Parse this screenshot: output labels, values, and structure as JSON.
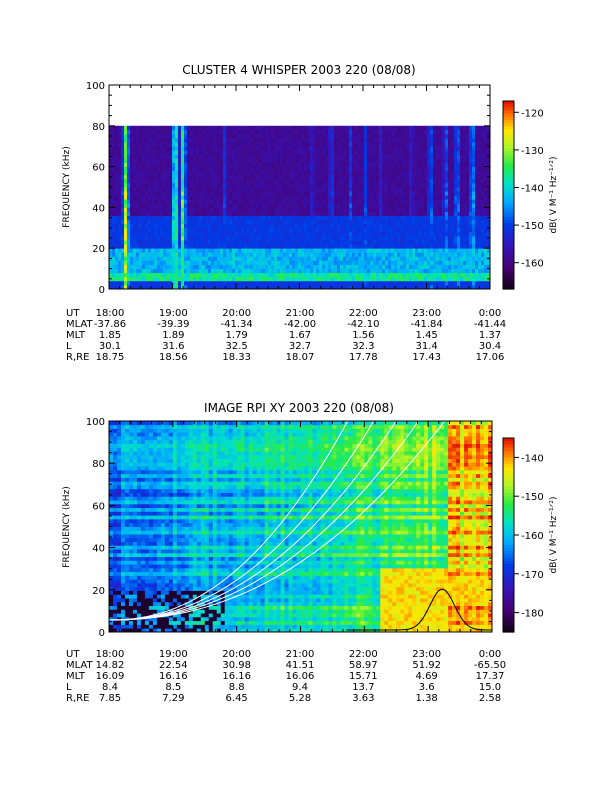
{
  "chart_data": [
    {
      "type": "heatmap",
      "title": "CLUSTER 4 WHISPER 2003 220 (08/08)",
      "ylabel": "FREQUENCY (kHz)",
      "ylim": [
        0,
        100
      ],
      "yticks": [
        "0",
        "20",
        "40",
        "60",
        "80",
        "100"
      ],
      "data_top_khz": 80,
      "colorbar": {
        "label": "dB( V M⁻¹ Hz⁻¹ᐟ²)",
        "range": [
          -167,
          -117
        ],
        "ticks": [
          "-120",
          "-130",
          "-140",
          "-150",
          "-160"
        ]
      },
      "time_ticks": [
        "18:00",
        "19:00",
        "20:00",
        "21:00",
        "22:00",
        "23:00",
        "0:00"
      ],
      "ephemeris": [
        {
          "label": "UT",
          "values": [
            "18:00",
            "19:00",
            "20:00",
            "21:00",
            "22:00",
            "23:00",
            "0:00"
          ]
        },
        {
          "label": "MLAT",
          "values": [
            "-37.86",
            "-39.39",
            "-41.34",
            "-42.00",
            "-42.10",
            "-41.84",
            "-41.44"
          ]
        },
        {
          "label": "MLT",
          "values": [
            "1.85",
            "1.89",
            "1.79",
            "1.67",
            "1.56",
            "1.45",
            "1.37"
          ]
        },
        {
          "label": "L",
          "values": [
            "30.1",
            "31.6",
            "32.5",
            "32.7",
            "32.3",
            "31.4",
            "30.4"
          ]
        },
        {
          "label": "R,RE",
          "values": [
            "18.75",
            "18.56",
            "18.33",
            "18.07",
            "17.78",
            "17.43",
            "17.06"
          ]
        }
      ]
    },
    {
      "type": "heatmap",
      "title": "IMAGE RPI XY 2003 220 (08/08)",
      "ylabel": "FREQUENCY (kHz)",
      "ylim": [
        0,
        100
      ],
      "yticks": [
        "0",
        "20",
        "40",
        "60",
        "80",
        "100"
      ],
      "colorbar": {
        "label": "dB( V M⁻¹ Hz⁻¹ᐟ²)",
        "range": [
          -185,
          -135
        ],
        "ticks": [
          "-140",
          "-150",
          "-160",
          "-170",
          "-180"
        ]
      },
      "time_ticks": [
        "18:00",
        "19:00",
        "20:00",
        "21:00",
        "22:00",
        "23:00",
        "0:00"
      ],
      "ephemeris": [
        {
          "label": "UT",
          "values": [
            "18:00",
            "19:00",
            "20:00",
            "21:00",
            "22:00",
            "23:00",
            "0:00"
          ]
        },
        {
          "label": "MLAT",
          "values": [
            "14.82",
            "22.54",
            "30.98",
            "41.51",
            "58.97",
            "51.92",
            "-65.50"
          ]
        },
        {
          "label": "MLT",
          "values": [
            "16.09",
            "16.16",
            "16.16",
            "16.06",
            "15.71",
            "4.69",
            "17.37"
          ]
        },
        {
          "label": "L",
          "values": [
            "8.4",
            "8.5",
            "8.8",
            "9.4",
            "13.7",
            "3.6",
            "15.0"
          ]
        },
        {
          "label": "R,RE",
          "values": [
            "7.85",
            "7.29",
            "6.45",
            "5.28",
            "3.63",
            "1.38",
            "2.58"
          ]
        }
      ]
    }
  ]
}
